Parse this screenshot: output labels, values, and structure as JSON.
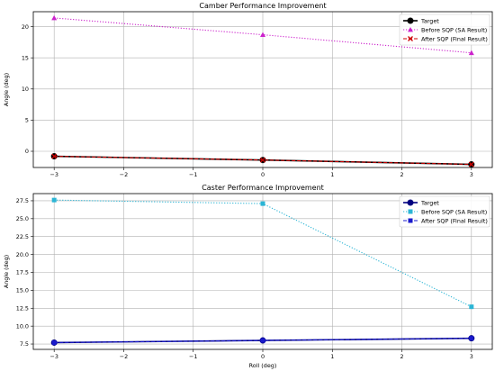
{
  "chart_data": [
    {
      "type": "line",
      "title": "Camber Performance Improvement",
      "xlabel": "",
      "ylabel": "Angle (deg)",
      "x": [
        -3,
        0,
        3
      ],
      "xlim": [
        -3.3,
        3.3
      ],
      "ylim": [
        -2.6,
        22.4
      ],
      "xticks": [
        -3,
        -2,
        -1,
        0,
        1,
        2,
        3
      ],
      "xtick_labels": [
        "−3",
        "−2",
        "−1",
        "0",
        "1",
        "2",
        "3"
      ],
      "yticks": [
        0,
        5,
        10,
        15,
        20
      ],
      "ytick_labels": [
        "0",
        "5",
        "10",
        "15",
        "20"
      ],
      "grid": true,
      "legend_position": "top-right",
      "series": [
        {
          "name": "Target",
          "values": [
            -0.8,
            -1.4,
            -2.1
          ],
          "color": "#000000",
          "linestyle": "solid",
          "marker": "circle"
        },
        {
          "name": "Before SQP (SA Result)",
          "values": [
            21.4,
            18.7,
            15.8
          ],
          "color": "#cc22cc",
          "linestyle": "dotted",
          "marker": "triangle"
        },
        {
          "name": "After SQP (Final Result)",
          "values": [
            -0.8,
            -1.4,
            -2.1
          ],
          "color": "#cc0000",
          "linestyle": "dashed",
          "marker": "x"
        }
      ]
    },
    {
      "type": "line",
      "title": "Caster Performance Improvement",
      "xlabel": "Roll (deg)",
      "ylabel": "Angle (deg)",
      "x": [
        -3,
        0,
        3
      ],
      "xlim": [
        -3.3,
        3.3
      ],
      "ylim": [
        6.75,
        28.5
      ],
      "xticks": [
        -3,
        -2,
        -1,
        0,
        1,
        2,
        3
      ],
      "xtick_labels": [
        "−3",
        "−2",
        "−1",
        "0",
        "1",
        "2",
        "3"
      ],
      "yticks": [
        7.5,
        10.0,
        12.5,
        15.0,
        17.5,
        20.0,
        22.5,
        25.0,
        27.5
      ],
      "ytick_labels": [
        "7.5",
        "10.0",
        "12.5",
        "15.0",
        "17.5",
        "20.0",
        "22.5",
        "25.0",
        "27.5"
      ],
      "grid": true,
      "legend_position": "top-right",
      "series": [
        {
          "name": "Target",
          "values": [
            7.7,
            8.0,
            8.3
          ],
          "color": "#000080",
          "linestyle": "solid",
          "marker": "circle"
        },
        {
          "name": "Before SQP (SA Result)",
          "values": [
            27.6,
            27.1,
            12.7
          ],
          "color": "#2bb5d5",
          "linestyle": "dotted",
          "marker": "square"
        },
        {
          "name": "After SQP (Final Result)",
          "values": [
            7.7,
            8.0,
            8.3
          ],
          "color": "#1a1acc",
          "linestyle": "dashed",
          "marker": "square"
        }
      ]
    }
  ]
}
